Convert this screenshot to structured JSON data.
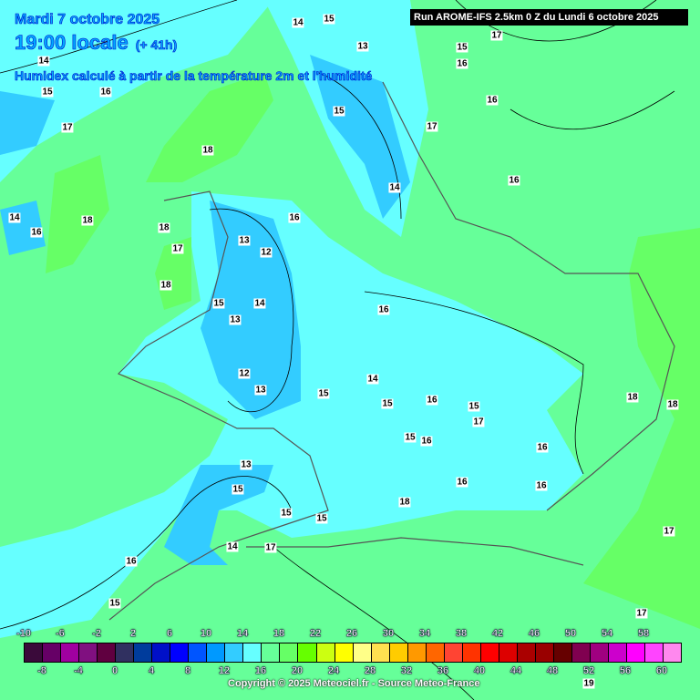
{
  "header": {
    "date": "Mardi 7 octobre 2025",
    "time": "19:00 locale",
    "lead": "(+ 41h)",
    "description": "Humidex calculé à partir de la température 2m et l'humidité",
    "run": "Run AROME-IFS 2.5km 0 Z du Lundi 6 octobre 2025"
  },
  "map_labels": [
    "14",
    "15",
    "13",
    "14",
    "15",
    "16",
    "17",
    "16",
    "15",
    "16",
    "14",
    "15",
    "17",
    "17",
    "18",
    "16",
    "18",
    "14",
    "16",
    "18",
    "18",
    "17",
    "18",
    "16",
    "13",
    "12",
    "14",
    "15",
    "13",
    "16",
    "12",
    "13",
    "15",
    "14",
    "15",
    "16",
    "15",
    "17",
    "16",
    "15",
    "16",
    "16",
    "16",
    "18",
    "18",
    "13",
    "15",
    "15",
    "15",
    "14",
    "16",
    "17",
    "15",
    "17",
    "17",
    "19"
  ],
  "legend": {
    "colors": [
      "#3a0a3a",
      "#660066",
      "#a000a0",
      "#801080",
      "#600040",
      "#303060",
      "#003c9c",
      "#0010c8",
      "#0000ff",
      "#0055ff",
      "#0099ff",
      "#33ccff",
      "#66ffff",
      "#66ff99",
      "#66ff66",
      "#66ff00",
      "#ccff11",
      "#ffff00",
      "#ffff88",
      "#ffe050",
      "#ffcc00",
      "#ff9900",
      "#ff6600",
      "#ff4433",
      "#ff3300",
      "#ff0000",
      "#dd0000",
      "#aa0000",
      "#990000",
      "#660000",
      "#800050",
      "#a00080",
      "#cc00cc",
      "#ff00ff",
      "#ff44ff",
      "#ff88ee"
    ],
    "top_ticks": [
      "-10",
      "-6",
      "-2",
      "2",
      "6",
      "10",
      "14",
      "18",
      "22",
      "26",
      "30",
      "34",
      "38",
      "42",
      "46",
      "50",
      "54",
      "58"
    ],
    "bottom_ticks": [
      "-8",
      "-4",
      "0",
      "4",
      "8",
      "12",
      "16",
      "20",
      "24",
      "28",
      "32",
      "36",
      "40",
      "44",
      "48",
      "52",
      "56",
      "60"
    ]
  },
  "copyright": "Copyright © 2025 Meteociel.fr - Source Meteo-France"
}
